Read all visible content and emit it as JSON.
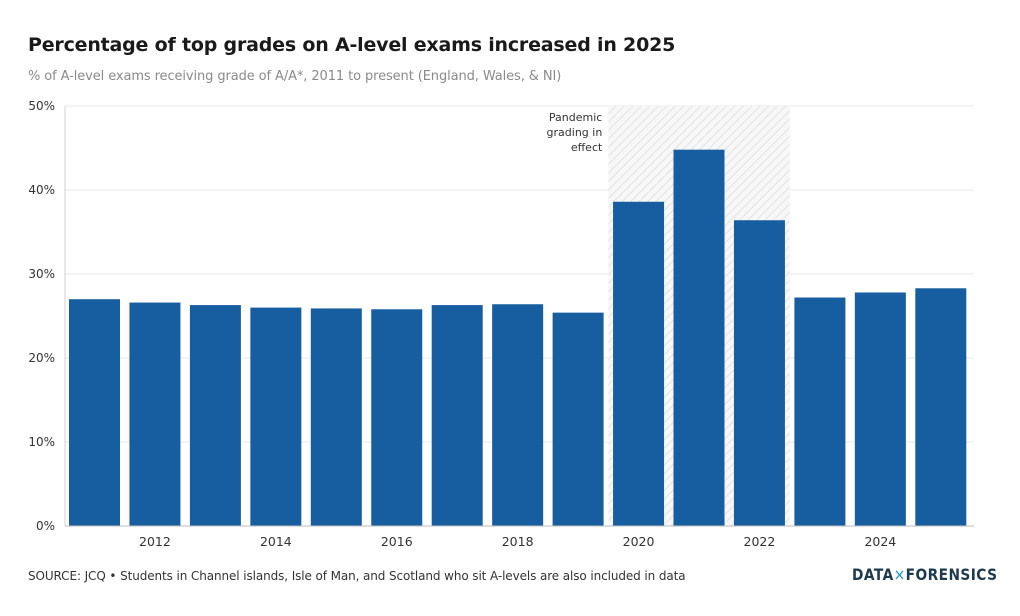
{
  "chart_data": {
    "type": "bar",
    "title": "Percentage of top grades on A-level exams increased in 2025",
    "subtitle": "% of A-level exams receiving grade of A/A*, 2011 to present (England, Wales, & NI)",
    "xlabel": "",
    "ylabel": "",
    "ylim": [
      0,
      50
    ],
    "yticks": [
      0,
      10,
      20,
      30,
      40,
      50
    ],
    "ytick_labels": [
      "0%",
      "10%",
      "20%",
      "30%",
      "40%",
      "50%"
    ],
    "categories": [
      "2011",
      "2012",
      "2013",
      "2014",
      "2015",
      "2016",
      "2017",
      "2018",
      "2019",
      "2020",
      "2021",
      "2022",
      "2023",
      "2024",
      "2025"
    ],
    "xtick_labels": [
      "2012",
      "2014",
      "2016",
      "2018",
      "2020",
      "2022",
      "2024"
    ],
    "values": [
      27.0,
      26.6,
      26.3,
      26.0,
      25.9,
      25.8,
      26.3,
      26.4,
      25.4,
      38.6,
      44.8,
      36.4,
      27.2,
      27.8,
      28.3
    ],
    "bar_color": "#175ea0",
    "grid": true,
    "shaded_region": {
      "from": "2020",
      "to": "2022",
      "label_lines": [
        "Pandemic",
        "grading in",
        "effect"
      ]
    }
  },
  "footer": {
    "source": "SOURCE: JCQ • Students in Channel islands, Isle of Man, and Scotland who sit A-levels are also included in data"
  },
  "logo": {
    "left": "DATA",
    "mid": "×",
    "right": "FORENSICS"
  }
}
